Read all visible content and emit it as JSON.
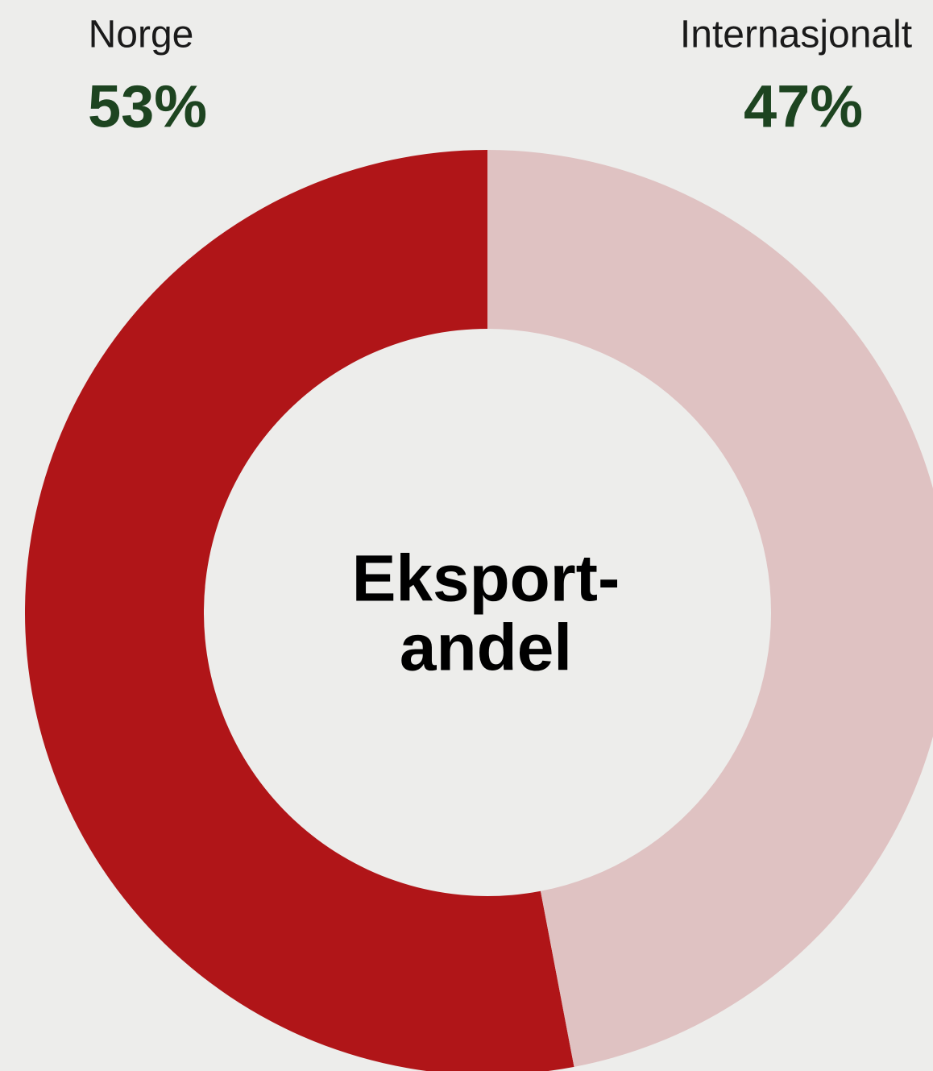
{
  "chart_data": {
    "type": "donut",
    "categories": [
      "Norge",
      "Internasjonalt"
    ],
    "values": [
      53,
      47
    ],
    "value_labels": [
      "53%",
      "47%"
    ],
    "colors": [
      "#b01518",
      "#dfc2c2"
    ],
    "center_label": [
      "Eksport-",
      "andel"
    ]
  }
}
